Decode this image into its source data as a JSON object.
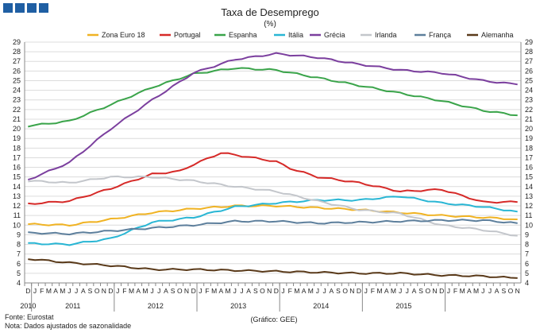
{
  "chart_data": {
    "type": "line",
    "title": "Taxa de Desemprego",
    "subtitle": "(%)",
    "source": "Fonte: Eurostat",
    "note": "Nota: Dados ajustados de sazonalidade",
    "credit": "(Gráfico: GEE)",
    "ylim": [
      4,
      29
    ],
    "yticks": [
      4,
      5,
      6,
      7,
      8,
      9,
      10,
      11,
      12,
      13,
      14,
      15,
      16,
      17,
      18,
      19,
      20,
      21,
      22,
      23,
      24,
      25,
      26,
      27,
      28,
      29
    ],
    "legend_position": "top",
    "grid": "horizontal",
    "month_labels": [
      "D",
      "J",
      "F",
      "M",
      "A",
      "M",
      "J",
      "J",
      "A",
      "S",
      "O",
      "N",
      "D",
      "J",
      "F",
      "M",
      "A",
      "M",
      "J",
      "J",
      "A",
      "S",
      "O",
      "N",
      "D",
      "J",
      "F",
      "M",
      "A",
      "M",
      "J",
      "J",
      "A",
      "S",
      "O",
      "N",
      "D",
      "J",
      "F",
      "M",
      "A",
      "M",
      "J",
      "J",
      "A",
      "S",
      "O",
      "N",
      "D",
      "J",
      "F",
      "M",
      "A",
      "M",
      "J",
      "J",
      "A",
      "S",
      "O",
      "N",
      "D",
      "J",
      "F",
      "M",
      "A",
      "M",
      "J",
      "J",
      "A",
      "S",
      "O",
      "N"
    ],
    "years": [
      {
        "label": "2010",
        "index": 0
      },
      {
        "label": "2011",
        "index": 6.5
      },
      {
        "label": "2012",
        "index": 18.5
      },
      {
        "label": "2013",
        "index": 30.5
      },
      {
        "label": "2014",
        "index": 42.5
      },
      {
        "label": "2015",
        "index": 54.5
      }
    ],
    "series": [
      {
        "name": "Zona Euro 18",
        "color": "#f0b323",
        "anchors": [
          [
            0,
            10.1
          ],
          [
            6,
            10.0
          ],
          [
            12,
            10.6
          ],
          [
            18,
            11.3
          ],
          [
            24,
            11.7
          ],
          [
            30,
            12.0
          ],
          [
            36,
            12.0
          ],
          [
            42,
            11.8
          ],
          [
            48,
            11.6
          ],
          [
            54,
            11.3
          ],
          [
            60,
            11.0
          ],
          [
            66,
            10.8
          ],
          [
            71,
            10.6
          ]
        ]
      },
      {
        "name": "Portugal",
        "color": "#d62a28",
        "anchors": [
          [
            0,
            12.2
          ],
          [
            6,
            12.5
          ],
          [
            12,
            13.8
          ],
          [
            18,
            15.3
          ],
          [
            22,
            15.6
          ],
          [
            24,
            16.3
          ],
          [
            28,
            17.5
          ],
          [
            30,
            17.3
          ],
          [
            36,
            16.6
          ],
          [
            38,
            15.9
          ],
          [
            42,
            15.0
          ],
          [
            48,
            14.4
          ],
          [
            54,
            13.5
          ],
          [
            60,
            13.7
          ],
          [
            66,
            12.4
          ],
          [
            71,
            12.4
          ]
        ]
      },
      {
        "name": "Espanha",
        "color": "#3aa44a",
        "anchors": [
          [
            0,
            20.3
          ],
          [
            6,
            20.8
          ],
          [
            12,
            22.5
          ],
          [
            18,
            24.3
          ],
          [
            24,
            25.7
          ],
          [
            30,
            26.3
          ],
          [
            36,
            26.1
          ],
          [
            42,
            25.3
          ],
          [
            48,
            24.5
          ],
          [
            54,
            23.7
          ],
          [
            60,
            22.9
          ],
          [
            66,
            21.9
          ],
          [
            71,
            21.4
          ]
        ]
      },
      {
        "name": "Itália",
        "color": "#29b6d4",
        "anchors": [
          [
            0,
            8.1
          ],
          [
            6,
            8.0
          ],
          [
            12,
            8.6
          ],
          [
            18,
            10.3
          ],
          [
            24,
            10.8
          ],
          [
            30,
            11.9
          ],
          [
            36,
            12.3
          ],
          [
            42,
            12.6
          ],
          [
            48,
            12.6
          ],
          [
            54,
            13.0
          ],
          [
            60,
            12.3
          ],
          [
            66,
            11.9
          ],
          [
            71,
            11.4
          ]
        ]
      },
      {
        "name": "Grécia",
        "color": "#7b3f9e",
        "anchors": [
          [
            0,
            14.7
          ],
          [
            6,
            16.5
          ],
          [
            12,
            20.0
          ],
          [
            18,
            23.0
          ],
          [
            24,
            25.8
          ],
          [
            30,
            27.2
          ],
          [
            36,
            27.8
          ],
          [
            42,
            27.4
          ],
          [
            48,
            26.7
          ],
          [
            54,
            26.1
          ],
          [
            60,
            25.8
          ],
          [
            66,
            25.0
          ],
          [
            71,
            24.6
          ]
        ]
      },
      {
        "name": "Irlanda",
        "color": "#c3c6cb",
        "anchors": [
          [
            0,
            14.6
          ],
          [
            6,
            14.4
          ],
          [
            12,
            15.0
          ],
          [
            18,
            15.0
          ],
          [
            24,
            14.6
          ],
          [
            30,
            14.0
          ],
          [
            36,
            13.5
          ],
          [
            42,
            12.5
          ],
          [
            48,
            11.6
          ],
          [
            54,
            11.2
          ],
          [
            60,
            10.0
          ],
          [
            66,
            9.5
          ],
          [
            71,
            8.9
          ]
        ]
      },
      {
        "name": "França",
        "color": "#5d7f9c",
        "anchors": [
          [
            0,
            9.2
          ],
          [
            6,
            9.1
          ],
          [
            12,
            9.4
          ],
          [
            18,
            9.7
          ],
          [
            24,
            10.0
          ],
          [
            30,
            10.4
          ],
          [
            36,
            10.4
          ],
          [
            42,
            10.2
          ],
          [
            48,
            10.3
          ],
          [
            54,
            10.4
          ],
          [
            60,
            10.5
          ],
          [
            66,
            10.5
          ],
          [
            71,
            10.2
          ]
        ]
      },
      {
        "name": "Alemanha",
        "color": "#5a3a1a",
        "anchors": [
          [
            0,
            6.5
          ],
          [
            6,
            6.1
          ],
          [
            12,
            5.8
          ],
          [
            18,
            5.4
          ],
          [
            24,
            5.4
          ],
          [
            30,
            5.3
          ],
          [
            36,
            5.2
          ],
          [
            42,
            5.1
          ],
          [
            48,
            5.0
          ],
          [
            54,
            5.0
          ],
          [
            60,
            4.8
          ],
          [
            66,
            4.7
          ],
          [
            71,
            4.5
          ]
        ]
      }
    ]
  }
}
